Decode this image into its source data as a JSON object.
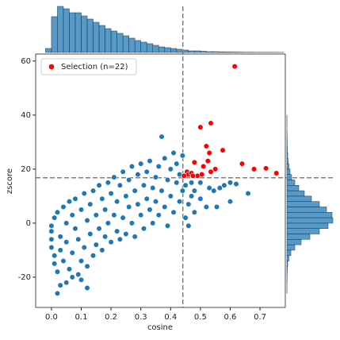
{
  "chart_data": {
    "type": "scatter",
    "xlabel": "cosine",
    "ylabel": "zscore",
    "xlim": [
      -0.053,
      0.785
    ],
    "ylim": [
      -31.2,
      62.6
    ],
    "xticks": [
      {
        "value": 0,
        "label": "0.0"
      },
      0.1,
      0.2,
      0.3,
      0.4,
      0.5,
      0.6,
      0.7
    ],
    "yticks": [
      -20,
      0,
      20,
      40,
      60
    ],
    "legend": "upper left",
    "reference_lines": {
      "x": 0.441,
      "y": 16.8,
      "color": "#808080"
    },
    "series": [
      {
        "color": "#1f77b4",
        "x": [
          0.0,
          0.0,
          0.0,
          0.0,
          0.01,
          0.01,
          0.01,
          0.02,
          0.02,
          0.03,
          0.02,
          0.03,
          0.03,
          0.04,
          0.04,
          0.05,
          0.05,
          0.05,
          0.06,
          0.06,
          0.07,
          0.07,
          0.08,
          0.08,
          0.09,
          0.09,
          0.1,
          0.1,
          0.1,
          0.11,
          0.11,
          0.12,
          0.12,
          0.13,
          0.13,
          0.14,
          0.14,
          0.15,
          0.15,
          0.16,
          0.16,
          0.17,
          0.17,
          0.18,
          0.18,
          0.19,
          0.19,
          0.2,
          0.2,
          0.21,
          0.21,
          0.22,
          0.22,
          0.23,
          0.23,
          0.24,
          0.24,
          0.25,
          0.25,
          0.26,
          0.26,
          0.27,
          0.27,
          0.28,
          0.28,
          0.29,
          0.29,
          0.3,
          0.3,
          0.31,
          0.31,
          0.32,
          0.32,
          0.33,
          0.33,
          0.34,
          0.34,
          0.35,
          0.35,
          0.36,
          0.36,
          0.37,
          0.37,
          0.38,
          0.38,
          0.39,
          0.39,
          0.4,
          0.4,
          0.41,
          0.41,
          0.42,
          0.42,
          0.43,
          0.43,
          0.44,
          0.44,
          0.45,
          0.45,
          0.46,
          0.46,
          0.47,
          0.47,
          0.48,
          0.48,
          0.5,
          0.5,
          0.52,
          0.53,
          0.545,
          0.555,
          0.565,
          0.58,
          0.6,
          0.6,
          0.62,
          0.66,
          0.12,
          0.07
        ],
        "values": [
          -3,
          -6,
          -9,
          -1,
          2,
          -12,
          -15,
          -18,
          -26,
          -23,
          4,
          -5,
          -10,
          6,
          -14,
          -22,
          0,
          -7,
          8,
          -17,
          3,
          -11,
          -2,
          9,
          -19,
          -6,
          -21,
          5,
          -14,
          11,
          -9,
          1,
          -16,
          7,
          -4,
          12,
          -12,
          3,
          -8,
          14,
          -2,
          9,
          -10,
          5,
          -5,
          15,
          0,
          11,
          -7,
          3,
          17,
          -3,
          8,
          14,
          -6,
          2,
          19,
          10,
          -4,
          6,
          16,
          0,
          21,
          12,
          -5,
          7,
          18,
          3,
          22,
          14,
          -2,
          9,
          19,
          5,
          23,
          13,
          0,
          17,
          8,
          21,
          3,
          32,
          12,
          24,
          6,
          16,
          -1,
          20,
          10,
          26,
          4,
          15,
          22,
          8,
          18,
          12,
          25,
          2,
          14,
          7,
          -1,
          10,
          15,
          4,
          12,
          9,
          15,
          6,
          13,
          12,
          6,
          13,
          14,
          8,
          15,
          14.5,
          11,
          -24,
          -20
        ]
      },
      {
        "name": "Selection (n=22)",
        "color": "#ff0000",
        "x": [
          0.615,
          0.535,
          0.5,
          0.575,
          0.52,
          0.53,
          0.48,
          0.525,
          0.51,
          0.64,
          0.68,
          0.72,
          0.755,
          0.455,
          0.46,
          0.47,
          0.49,
          0.505,
          0.445,
          0.475,
          0.535,
          0.55
        ],
        "values": [
          58,
          37,
          35.5,
          27,
          28.5,
          26,
          22.5,
          23,
          21,
          22,
          20,
          20.3,
          18.5,
          19,
          18,
          18.5,
          17.5,
          18,
          17.5,
          17.5,
          19,
          20
        ]
      }
    ],
    "x_hist": {
      "color": "#1f77b4",
      "bins": [
        -0.02,
        0,
        0.02,
        0.04,
        0.06,
        0.08,
        0.1,
        0.12,
        0.14,
        0.16,
        0.18,
        0.2,
        0.22,
        0.24,
        0.26,
        0.28,
        0.3,
        0.32,
        0.34,
        0.36,
        0.38,
        0.4,
        0.42,
        0.44,
        0.46,
        0.48,
        0.5,
        0.52,
        0.54,
        0.56,
        0.58,
        0.6,
        0.62,
        0.64,
        0.66,
        0.68,
        0.7,
        0.72,
        0.74,
        0.76,
        0.78
      ],
      "counts": [
        5,
        45,
        58,
        55,
        50,
        50,
        46,
        42,
        38,
        34,
        30,
        27,
        24,
        21,
        18,
        15,
        13,
        11,
        9,
        7,
        6,
        5,
        4,
        3,
        2,
        2,
        1.5,
        1,
        1,
        0.8,
        0.6,
        0.5,
        0.4,
        0.3,
        0.3,
        0.2,
        0.2,
        0.2,
        0.2,
        0.1
      ]
    },
    "y_hist": {
      "color": "#1f77b4",
      "bins": [
        -26,
        -24,
        -22,
        -20,
        -18,
        -16,
        -14,
        -12,
        -10,
        -8,
        -6,
        -4,
        -2,
        0,
        2,
        4,
        6,
        8,
        10,
        12,
        14,
        16,
        18,
        20,
        22,
        24,
        26,
        28,
        30,
        32,
        34,
        36,
        38,
        40,
        42,
        44,
        46,
        48,
        50,
        52,
        54,
        56,
        58
      ],
      "counts": [
        0.1,
        0.1,
        0.2,
        0.3,
        0.5,
        1,
        2.5,
        5,
        10,
        18,
        29,
        41,
        52,
        58,
        57,
        50,
        41,
        31,
        22,
        15,
        10,
        6,
        4,
        2.5,
        1.5,
        1,
        0.6,
        0.4,
        0.3,
        0.2,
        0.1,
        0.1,
        0.1,
        0,
        0,
        0,
        0,
        0,
        0,
        0,
        0,
        0,
        0.1
      ]
    }
  }
}
